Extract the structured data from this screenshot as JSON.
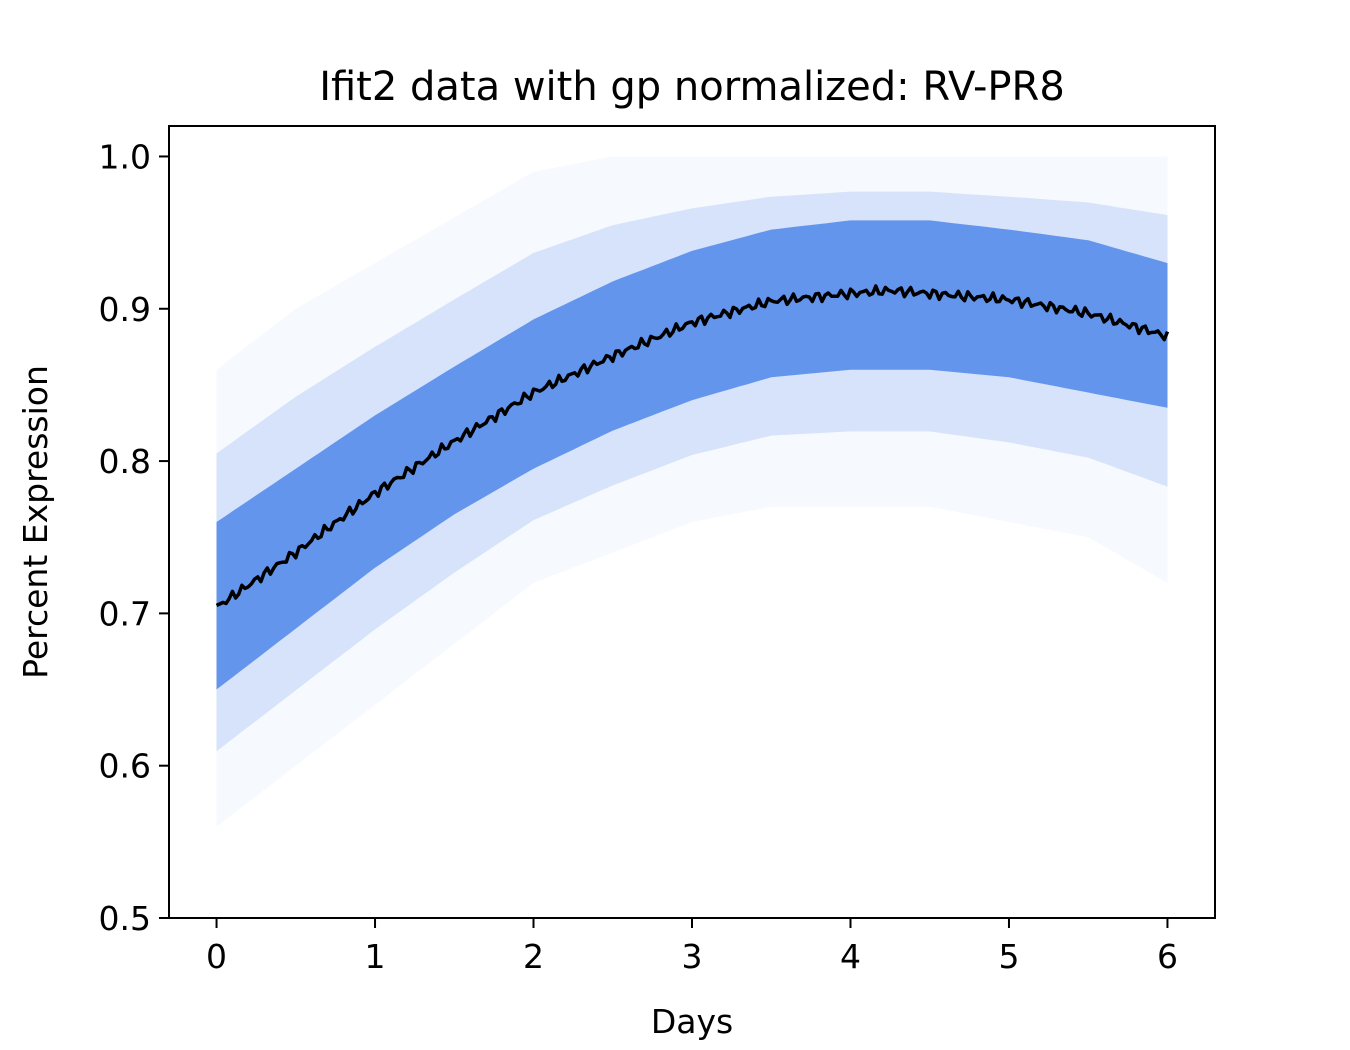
{
  "chart_data": {
    "type": "line",
    "title": "Ifit2 data with gp normalized: RV-PR8",
    "xlabel": "Days",
    "ylabel": "Percent Expression",
    "xlim": [
      -0.3,
      6.3
    ],
    "ylim": [
      0.5,
      1.02
    ],
    "x_ticks": [
      "0",
      "1",
      "2",
      "3",
      "4",
      "5",
      "6"
    ],
    "y_ticks": [
      "0.5",
      "0.6",
      "0.7",
      "0.8",
      "0.9",
      "1.0"
    ],
    "grid": false,
    "colors": {
      "band": "#6495ED",
      "mean_line": "#000000",
      "frame": "#000000"
    },
    "series": [
      {
        "style": "mean-line",
        "x": [
          0,
          0.5,
          1,
          1.5,
          2,
          2.5,
          3,
          3.5,
          4,
          4.25,
          4.5,
          5,
          5.5,
          6
        ],
        "y": [
          0.704,
          0.74,
          0.779,
          0.813,
          0.845,
          0.869,
          0.891,
          0.905,
          0.91,
          0.912,
          0.91,
          0.906,
          0.897,
          0.882
        ]
      },
      {
        "style": "sample-band",
        "x": [
          0,
          0.5,
          1,
          1.5,
          2,
          2.5,
          3,
          3.5,
          4,
          4.5,
          5,
          5.5,
          6
        ],
        "y_lower": [
          0.65,
          0.69,
          0.73,
          0.765,
          0.795,
          0.82,
          0.84,
          0.855,
          0.86,
          0.86,
          0.855,
          0.845,
          0.835
        ],
        "y_upper": [
          0.76,
          0.795,
          0.83,
          0.862,
          0.893,
          0.918,
          0.938,
          0.952,
          0.958,
          0.958,
          0.952,
          0.945,
          0.93
        ],
        "y_min": [
          0.56,
          0.6,
          0.64,
          0.68,
          0.72,
          0.74,
          0.76,
          0.77,
          0.77,
          0.77,
          0.76,
          0.75,
          0.72
        ],
        "y_max": [
          0.86,
          0.9,
          0.93,
          0.96,
          0.99,
          1.0,
          1.0,
          1.0,
          1.0,
          1.0,
          1.0,
          1.0,
          1.0
        ]
      }
    ]
  }
}
